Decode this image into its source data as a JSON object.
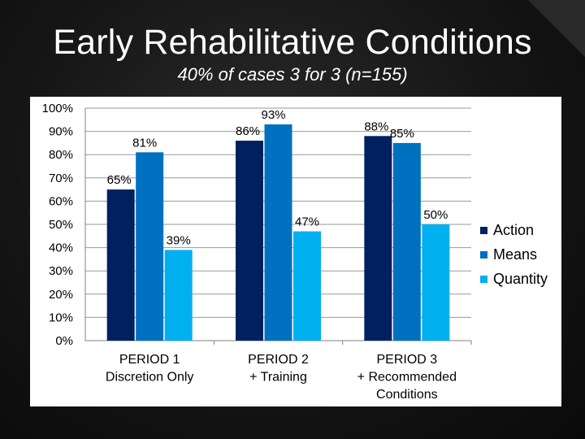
{
  "slide": {
    "title": "Early Rehabilitative Conditions",
    "subtitle": "40% of cases 3 for 3 (n=155)"
  },
  "chart_data": {
    "type": "bar",
    "categories": [
      [
        "PERIOD 1",
        "Discretion Only"
      ],
      [
        "PERIOD 2",
        "+ Training"
      ],
      [
        "PERIOD 3",
        "+ Recommended",
        "Conditions"
      ]
    ],
    "series": [
      {
        "name": "Action",
        "values": [
          65,
          86,
          88
        ],
        "labels": [
          "65%",
          "86%",
          "88%"
        ],
        "color": "#002060"
      },
      {
        "name": "Means",
        "values": [
          81,
          93,
          85
        ],
        "labels": [
          "81%",
          "93%",
          "85%"
        ],
        "color": "#0070C0"
      },
      {
        "name": "Quantity",
        "values": [
          39,
          47,
          50
        ],
        "labels": [
          "39%",
          "47%",
          "50%"
        ],
        "color": "#00B0F0"
      }
    ],
    "yticks": [
      "0%",
      "10%",
      "20%",
      "30%",
      "40%",
      "50%",
      "60%",
      "70%",
      "80%",
      "90%",
      "100%"
    ],
    "ylim": [
      0,
      100
    ],
    "grid": true,
    "legend": "right"
  }
}
